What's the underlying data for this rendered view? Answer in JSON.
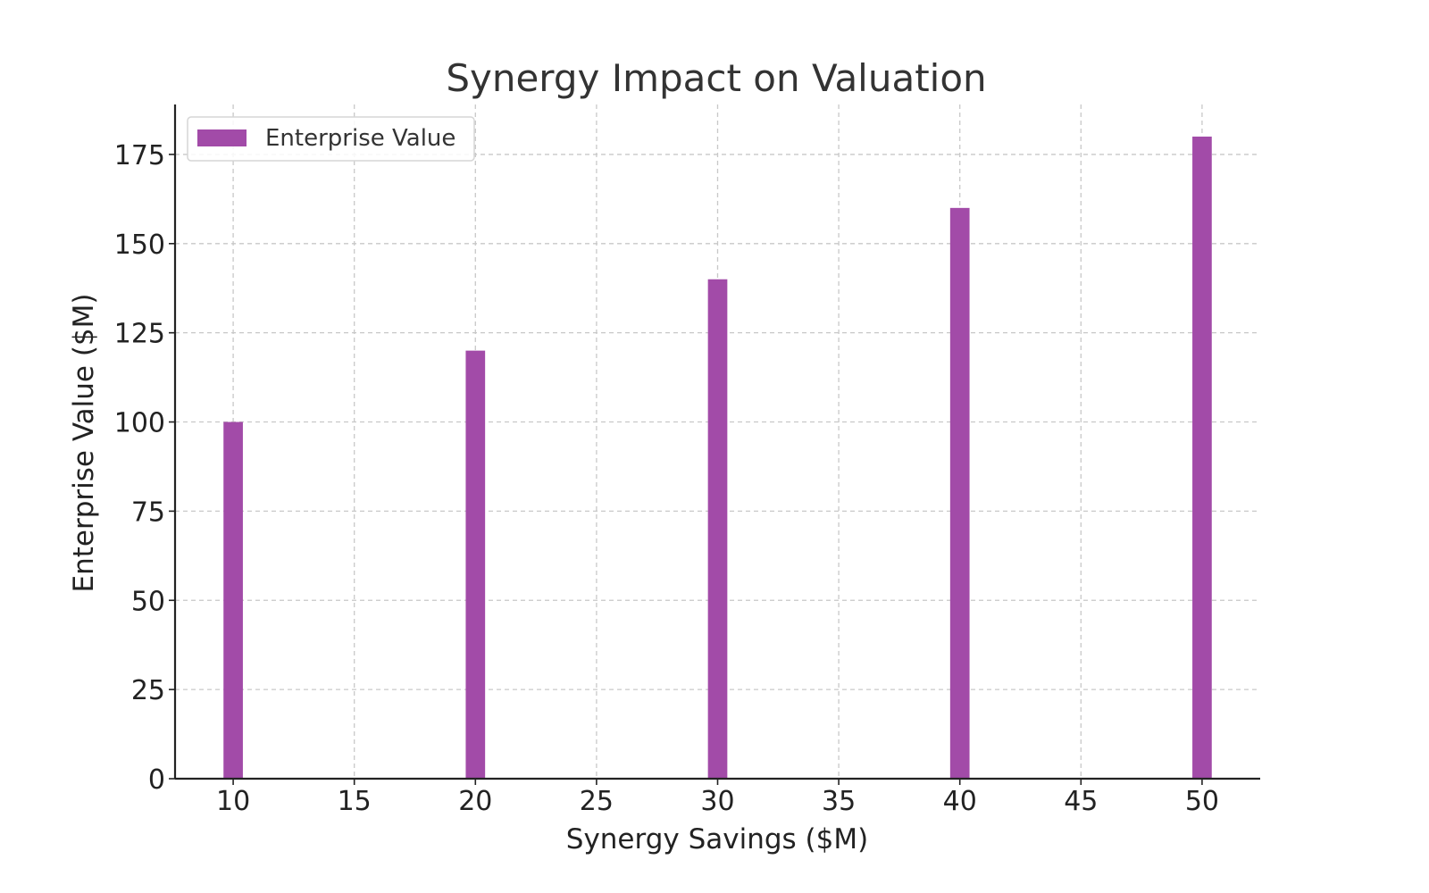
{
  "chart_data": {
    "type": "bar",
    "title": "Synergy Impact on Valuation",
    "xlabel": "Synergy Savings ($M)",
    "ylabel": "Enterprise Value ($M)",
    "x": [
      10,
      20,
      30,
      40,
      50
    ],
    "series": [
      {
        "name": "Enterprise Value",
        "values": [
          100,
          120,
          140,
          160,
          180
        ],
        "color": "#a24ba8"
      }
    ],
    "xlim": [
      7.6,
      52.4
    ],
    "ylim": [
      0,
      189
    ],
    "xticks": [
      10,
      15,
      20,
      25,
      30,
      35,
      40,
      45,
      50
    ],
    "yticks": [
      0,
      25,
      50,
      75,
      100,
      125,
      150,
      175
    ],
    "bar_width": 0.8,
    "grid": true,
    "legend_position": "top-left"
  }
}
